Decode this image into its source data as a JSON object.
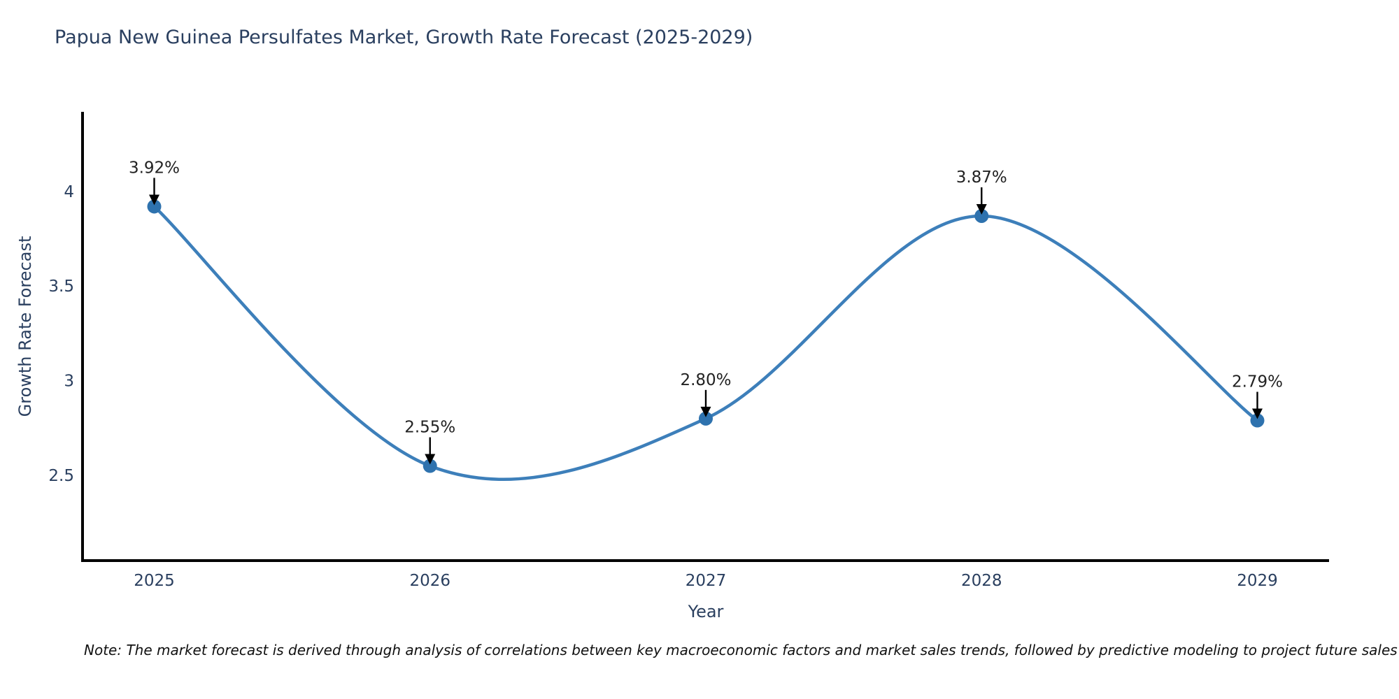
{
  "title": "Papua New Guinea Persulfates Market, Growth Rate Forecast (2025-2029)",
  "note": "Note: The market forecast is derived through analysis of correlations between key macroeconomic factors and market sales trends, followed by predictive modeling to project future sales",
  "chart_data": {
    "type": "line",
    "line_shape": "spline",
    "title": "Papua New Guinea Persulfates Market, Growth Rate Forecast (2025-2029)",
    "xlabel": "Year",
    "ylabel": "Growth Rate Forecast",
    "x": [
      2025,
      2026,
      2027,
      2028,
      2029
    ],
    "x_tick_labels": [
      "2025",
      "2026",
      "2027",
      "2028",
      "2029"
    ],
    "series": [
      {
        "name": "Growth Rate Forecast",
        "values": [
          3.92,
          2.55,
          2.8,
          3.87,
          2.79
        ],
        "point_labels": [
          "3.92%",
          "2.55%",
          "2.80%",
          "3.87%",
          "2.79%"
        ]
      }
    ],
    "y_ticks": [
      {
        "value": 2.5,
        "label": "2.5"
      },
      {
        "value": 3,
        "label": "3"
      },
      {
        "value": 3.5,
        "label": "3.5"
      },
      {
        "value": 4,
        "label": "4"
      }
    ],
    "xlim": [
      2024.74,
      2029.26
    ],
    "ylim": [
      2.05,
      4.42
    ],
    "grid": false,
    "legend": "none",
    "annotation_style": "value labels with downward black arrows above each data point",
    "colors": {
      "line": "#3d7fba",
      "marker": "#2e72ae",
      "axis_line": "#000000",
      "axis_text": "#2a3f5f",
      "annotation_text": "#222222",
      "annotation_arrow": "#000000"
    }
  }
}
